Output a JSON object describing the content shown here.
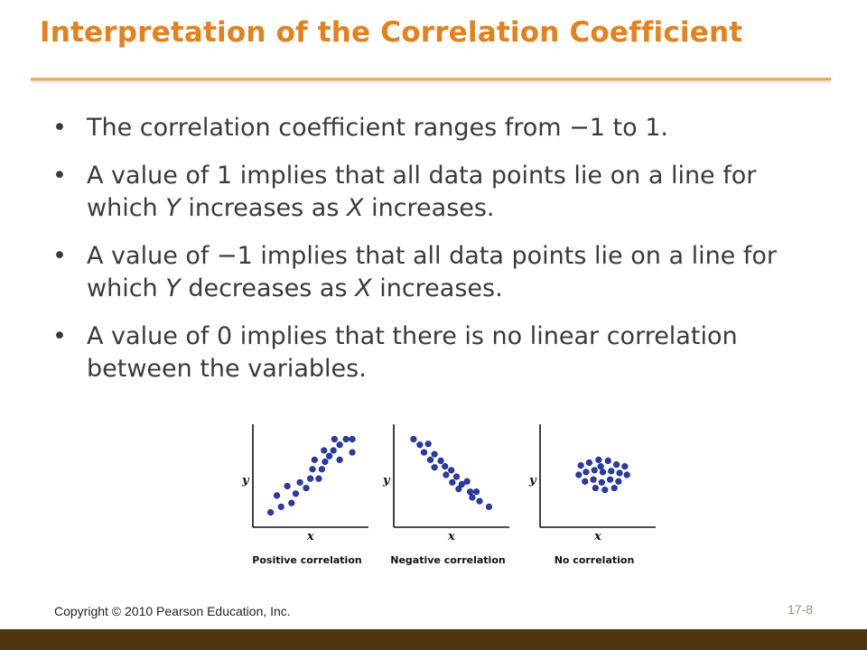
{
  "slide": {
    "title": "Interpretation of the Correlation Coefficient",
    "bullets": [
      {
        "parts": [
          {
            "t": "The correlation coefficient ranges from −1 to 1."
          }
        ]
      },
      {
        "parts": [
          {
            "t": "A value of 1 implies that all data points lie on a line for which "
          },
          {
            "t": "Y",
            "i": true
          },
          {
            "t": " increases as "
          },
          {
            "t": "X",
            "i": true
          },
          {
            "t": " increases."
          }
        ]
      },
      {
        "parts": [
          {
            "t": "A value of −1 implies that all data points lie on a line for which "
          },
          {
            "t": "Y",
            "i": true
          },
          {
            "t": " decreases as "
          },
          {
            "t": "X",
            "i": true
          },
          {
            "t": " increases."
          }
        ]
      },
      {
        "parts": [
          {
            "t": "A value of 0 implies that there is no linear correlation between the variables."
          }
        ]
      }
    ],
    "bullet_glyph": "•",
    "copyright": "Copyright © 2010 Pearson Education, Inc.",
    "slide_number": "17-8"
  },
  "colors": {
    "title": "#e4811c",
    "rule": "#f0a85a",
    "footer_bar": "#4c3510",
    "dot": "#2b3aa6"
  },
  "chart_data": [
    {
      "type": "scatter",
      "xlabel": "x",
      "ylabel": "y",
      "caption": "Positive correlation",
      "points": [
        [
          1,
          1
        ],
        [
          2,
          1.6
        ],
        [
          1.6,
          2.8
        ],
        [
          3,
          2
        ],
        [
          3.4,
          3
        ],
        [
          2.6,
          3.8
        ],
        [
          3.8,
          4.2
        ],
        [
          4.4,
          3.6
        ],
        [
          4.8,
          4.6
        ],
        [
          5,
          5.6
        ],
        [
          5.6,
          4.6
        ],
        [
          5.9,
          5.6
        ],
        [
          6.2,
          6.4
        ],
        [
          6.6,
          7
        ],
        [
          5.2,
          6.6
        ],
        [
          6.1,
          7.6
        ],
        [
          7,
          7.6
        ],
        [
          7.6,
          8.2
        ],
        [
          7.1,
          8.8
        ],
        [
          8.2,
          8.8
        ],
        [
          8.8,
          8.8
        ],
        [
          8.8,
          7.4
        ],
        [
          7.6,
          6.6
        ]
      ]
    },
    {
      "type": "scatter",
      "xlabel": "x",
      "ylabel": "y",
      "caption": "Negative correlation",
      "points": [
        [
          1.2,
          8.8
        ],
        [
          1.8,
          8.2
        ],
        [
          2.6,
          8.3
        ],
        [
          2.2,
          7.4
        ],
        [
          3.2,
          7.2
        ],
        [
          2.8,
          6.6
        ],
        [
          3.8,
          6.5
        ],
        [
          3.2,
          5.8
        ],
        [
          4.2,
          5.9
        ],
        [
          4.8,
          5.5
        ],
        [
          4.3,
          5
        ],
        [
          5.3,
          4.8
        ],
        [
          4.9,
          4.2
        ],
        [
          5.8,
          4
        ],
        [
          6.3,
          4.3
        ],
        [
          5.5,
          3.5
        ],
        [
          6.6,
          3.2
        ],
        [
          7.2,
          3.2
        ],
        [
          7.5,
          2.2
        ],
        [
          8.4,
          1.6
        ],
        [
          6.8,
          2.6
        ]
      ]
    },
    {
      "type": "scatter",
      "xlabel": "x",
      "ylabel": "y",
      "caption": "No correlation",
      "points": [
        [
          3.2,
          6
        ],
        [
          4,
          6.3
        ],
        [
          4.9,
          6.6
        ],
        [
          5.8,
          6.5
        ],
        [
          6.6,
          6.1
        ],
        [
          7.4,
          5.9
        ],
        [
          3,
          5
        ],
        [
          3.7,
          5.3
        ],
        [
          4.5,
          5.5
        ],
        [
          5.3,
          5.3
        ],
        [
          6.1,
          5.4
        ],
        [
          6.9,
          5.2
        ],
        [
          7.6,
          5
        ],
        [
          3.6,
          4.3
        ],
        [
          4.4,
          4.5
        ],
        [
          5.2,
          4.2
        ],
        [
          6,
          4.5
        ],
        [
          6.8,
          4.3
        ],
        [
          4.6,
          3.6
        ],
        [
          5.5,
          3.4
        ],
        [
          6.4,
          3.6
        ],
        [
          5.1,
          5.9
        ]
      ]
    }
  ]
}
